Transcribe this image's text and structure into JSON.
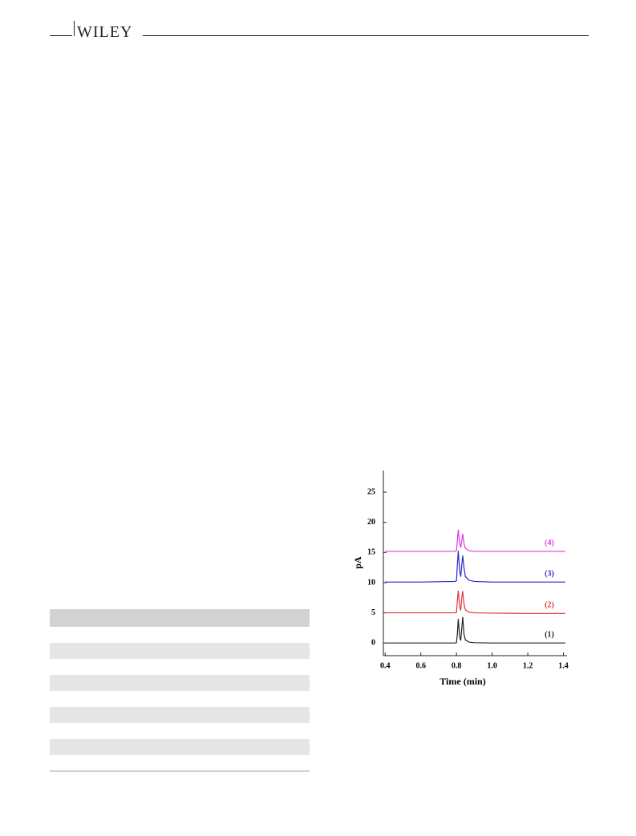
{
  "header": {
    "brand": "WILEY"
  },
  "chart_data": {
    "type": "line",
    "x_label": "Time (min)",
    "y_label": "pA",
    "x": [
      0.4,
      0.6,
      0.79,
      0.8,
      0.805,
      0.81,
      0.818,
      0.824,
      0.83,
      0.835,
      0.842,
      0.85,
      0.87,
      0.9,
      1.0,
      1.2,
      1.41
    ],
    "series": [
      {
        "name": "(1)",
        "color": "#222222",
        "values": [
          0,
          0,
          0,
          0.05,
          1.5,
          4.0,
          1.0,
          0.4,
          2.5,
          4.3,
          1.5,
          0.5,
          0.15,
          0.05,
          0,
          0,
          0
        ]
      },
      {
        "name": "(2)",
        "color": "#e0353b",
        "values": [
          5,
          5,
          5,
          5.05,
          7,
          8.7,
          6,
          5.4,
          7.5,
          8.6,
          6.5,
          5.5,
          5.1,
          5,
          4.95,
          4.9,
          4.9
        ]
      },
      {
        "name": "(3)",
        "color": "#2b2bc8",
        "values": [
          10.1,
          10.1,
          10.2,
          10.3,
          13,
          15.3,
          12,
          11,
          13,
          14.5,
          12.5,
          11,
          10.4,
          10.2,
          10.1,
          10.1,
          10.1
        ]
      },
      {
        "name": "(4)",
        "color": "#e03ae0",
        "values": [
          15.2,
          15.2,
          15.2,
          15.3,
          17,
          18.8,
          16.5,
          15.8,
          17,
          18.1,
          16.5,
          15.7,
          15.3,
          15.2,
          15.2,
          15.2,
          15.2
        ]
      }
    ],
    "xlim": [
      0.39,
      1.42
    ],
    "ylim": [
      -2.1,
      28.6
    ],
    "xticks": [
      0.4,
      0.6,
      0.8,
      {
        "value": 1.0,
        "label": "1.0"
      },
      1.2,
      1.4
    ],
    "yticks": [
      0,
      5,
      10,
      15,
      20,
      25
    ]
  }
}
